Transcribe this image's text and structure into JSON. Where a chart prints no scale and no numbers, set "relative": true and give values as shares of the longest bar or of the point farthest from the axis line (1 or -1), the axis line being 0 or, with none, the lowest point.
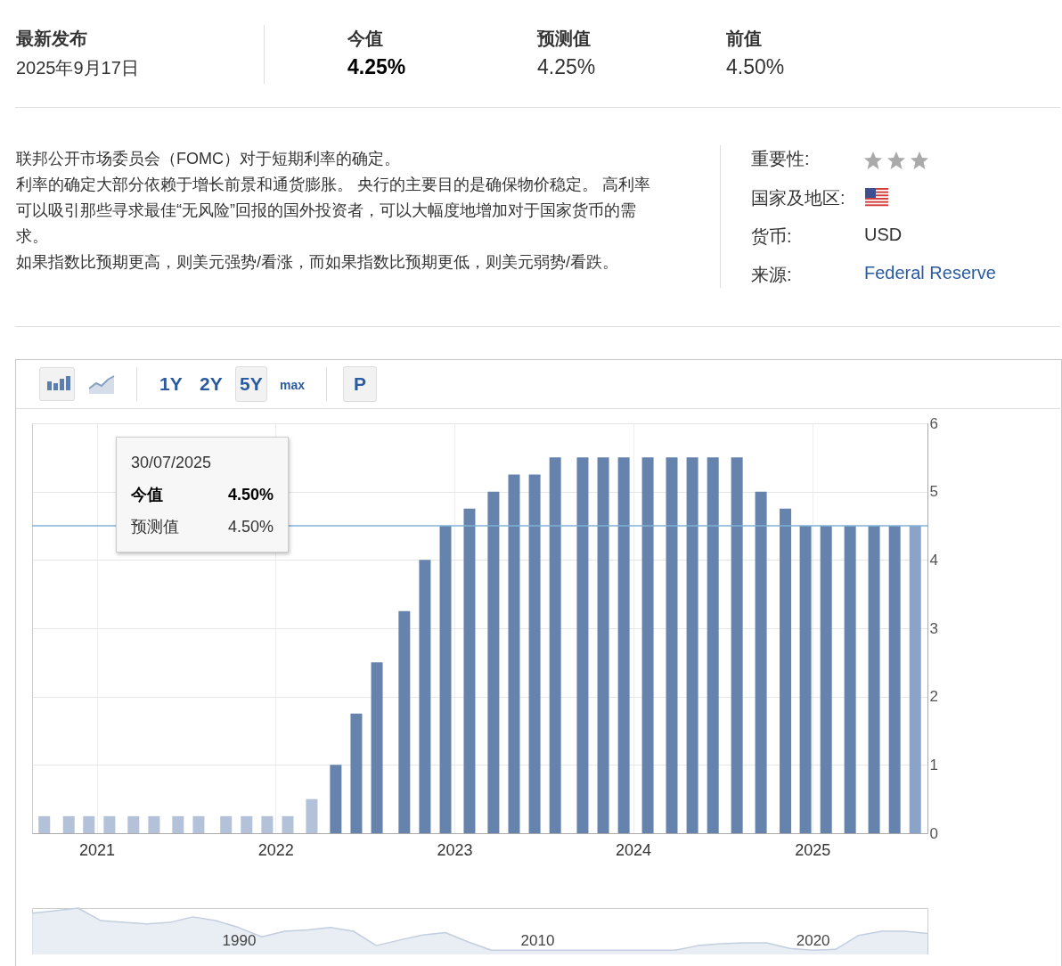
{
  "chart_data": [
    {
      "type": "other",
      "annotations": [
        "最新发布",
        "2025年9月17日",
        "今值",
        "4.25%",
        "预测值",
        "4.25%",
        "前值",
        "4.50%",
        "联邦公开市场委员会（FOMC）对于短期利率的确定。",
        "利率的确定大部分依赖于增长前景和通货膨胀。 央行的主要目的是确保物价稳定。 高利率可以吸引那些寻求最佳“无风险”回报的国外投资者，可以大幅度地增加对于国家货币的需求。",
        "如果指数比预期更高，则美元强势/看涨，而如果指数比预期更低，则美元弱势/看跌。",
        "重要性:",
        "国家及地区:",
        "货币:",
        "USD",
        "来源:",
        "Federal Reserve",
        "1Y",
        "2Y",
        "5Y",
        "max",
        "P"
      ]
    },
    {
      "type": "bar",
      "x": [
        "2020-09-16",
        "2020-11-05",
        "2020-12-16",
        "2021-01-27",
        "2021-03-17",
        "2021-04-28",
        "2021-06-16",
        "2021-07-28",
        "2021-09-22",
        "2021-11-03",
        "2021-12-15",
        "2022-01-26",
        "2022-03-16",
        "2022-05-04",
        "2022-06-15",
        "2022-07-27",
        "2022-09-21",
        "2022-11-02",
        "2022-12-14",
        "2023-02-01",
        "2023-03-22",
        "2023-05-03",
        "2023-06-14",
        "2023-07-26",
        "2023-09-20",
        "2023-11-01",
        "2023-12-13",
        "2024-01-31",
        "2024-03-20",
        "2024-05-01",
        "2024-06-12",
        "2024-07-31",
        "2024-09-18",
        "2024-11-07",
        "2024-12-18",
        "2025-01-29",
        "2025-03-19",
        "2025-05-07",
        "2025-06-18",
        "2025-07-30"
      ],
      "values": [
        0.25,
        0.25,
        0.25,
        0.25,
        0.25,
        0.25,
        0.25,
        0.25,
        0.25,
        0.25,
        0.25,
        0.25,
        0.5,
        1,
        1.75,
        2.5,
        3.25,
        4,
        4.5,
        4.75,
        5,
        5.25,
        5.25,
        5.5,
        5.5,
        5.5,
        5.5,
        5.5,
        5.5,
        5.5,
        5.5,
        5.5,
        5,
        4.75,
        4.5,
        4.5,
        4.5,
        4.5,
        4.5,
        4.5
      ],
      "colors": [
        "#b3c2d8",
        "#b3c2d8",
        "#b3c2d8",
        "#b3c2d8",
        "#b3c2d8",
        "#b3c2d8",
        "#b3c2d8",
        "#b3c2d8",
        "#b3c2d8",
        "#b3c2d8",
        "#b3c2d8",
        "#b3c2d8",
        "#b3c2d8",
        "#6583ad",
        "#6583ad",
        "#6583ad",
        "#6583ad",
        "#6583ad",
        "#6583ad",
        "#6583ad",
        "#6583ad",
        "#6583ad",
        "#6583ad",
        "#6583ad",
        "#6583ad",
        "#6583ad",
        "#6583ad",
        "#6583ad",
        "#6583ad",
        "#6583ad",
        "#6583ad",
        "#6583ad",
        "#6583ad",
        "#6583ad",
        "#6583ad",
        "#6583ad",
        "#6583ad",
        "#6583ad",
        "#6583ad",
        "#8aa3c8"
      ],
      "xlim": [
        "2020-08-22",
        "2025-08-24"
      ],
      "xticks": [
        "2021",
        "2022",
        "2023",
        "2024",
        "2025"
      ],
      "ylim": [
        0,
        6
      ],
      "yticks": [
        0,
        1,
        2,
        3,
        4,
        5,
        6
      ],
      "grid": true,
      "ref_lines": [
        {
          "axis": "y",
          "value": 4.5,
          "label": null,
          "color": "#7fb2d6"
        }
      ],
      "annotations": [
        "30/07/2025",
        "今值",
        "4.50%",
        "预测值",
        "4.50%"
      ]
    },
    {
      "type": "area",
      "relative": true,
      "color": "#dfe6f0",
      "categories": [
        null,
        null,
        null,
        null,
        null,
        null,
        null,
        null,
        null,
        "1990",
        null,
        null,
        null,
        null,
        null,
        null,
        null,
        null,
        null,
        null,
        null,
        null,
        "2010",
        null,
        null,
        null,
        null,
        null,
        null,
        null,
        null,
        null,
        null,
        null,
        "2020",
        null,
        null,
        null,
        null,
        null
      ],
      "values": [
        0.89,
        0.94,
        1,
        0.73,
        0.69,
        0.66,
        0.69,
        0.81,
        0.73,
        0.58,
        0.38,
        0.5,
        0.53,
        0.58,
        0.5,
        0.19,
        0.31,
        0.42,
        0.47,
        0.27,
        0.09,
        0.09,
        0.09,
        0.09,
        0.09,
        0.09,
        0.09,
        0.09,
        0.09,
        0.19,
        0.23,
        0.25,
        0.25,
        0.13,
        0.09,
        0.11,
        0.41,
        0.5,
        0.5,
        0.45
      ]
    }
  ]
}
